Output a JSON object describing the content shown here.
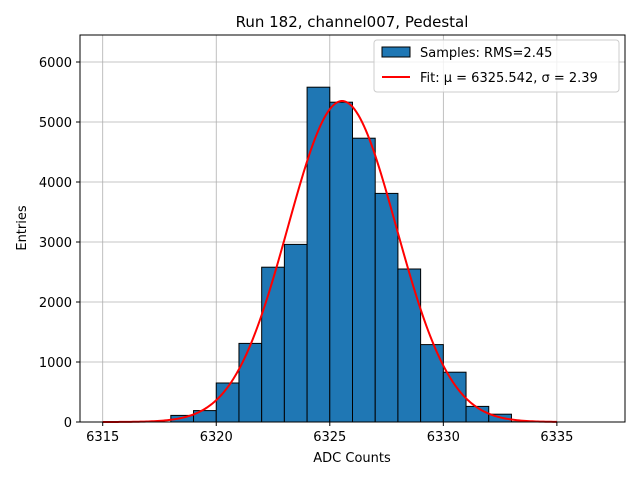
{
  "chart_data": {
    "type": "bar",
    "title": "Run 182, channel007, Pedestal",
    "xlabel": "ADC Counts",
    "ylabel": "Entries",
    "xlim": [
      6314,
      6338
    ],
    "ylim": [
      0,
      6450
    ],
    "xticks": [
      6315,
      6320,
      6325,
      6330,
      6335
    ],
    "yticks": [
      0,
      1000,
      2000,
      3000,
      4000,
      5000,
      6000
    ],
    "grid": true,
    "legend_position": "upper-right",
    "bin_width": 1,
    "histogram": {
      "name": "Samples: RMS=2.45",
      "color": "#1f77b4",
      "edge_color": "#000000",
      "bins": [
        {
          "x0": 6318,
          "value": 110
        },
        {
          "x0": 6319,
          "value": 190
        },
        {
          "x0": 6320,
          "value": 650
        },
        {
          "x0": 6321,
          "value": 1310
        },
        {
          "x0": 6322,
          "value": 2580
        },
        {
          "x0": 6323,
          "value": 2960
        },
        {
          "x0": 6324,
          "value": 5580
        },
        {
          "x0": 6325,
          "value": 5330
        },
        {
          "x0": 6326,
          "value": 4730
        },
        {
          "x0": 6327,
          "value": 3810
        },
        {
          "x0": 6328,
          "value": 2550
        },
        {
          "x0": 6329,
          "value": 1290
        },
        {
          "x0": 6330,
          "value": 830
        },
        {
          "x0": 6331,
          "value": 260
        },
        {
          "x0": 6332,
          "value": 130
        },
        {
          "x0": 6333,
          "value": 5
        }
      ]
    },
    "fit": {
      "name": "Fit: μ = 6325.542, σ = 2.39",
      "color": "#ff0000",
      "mu": 6325.542,
      "sigma": 2.39,
      "peak": 5350,
      "x_range": [
        6315,
        6335
      ]
    }
  }
}
